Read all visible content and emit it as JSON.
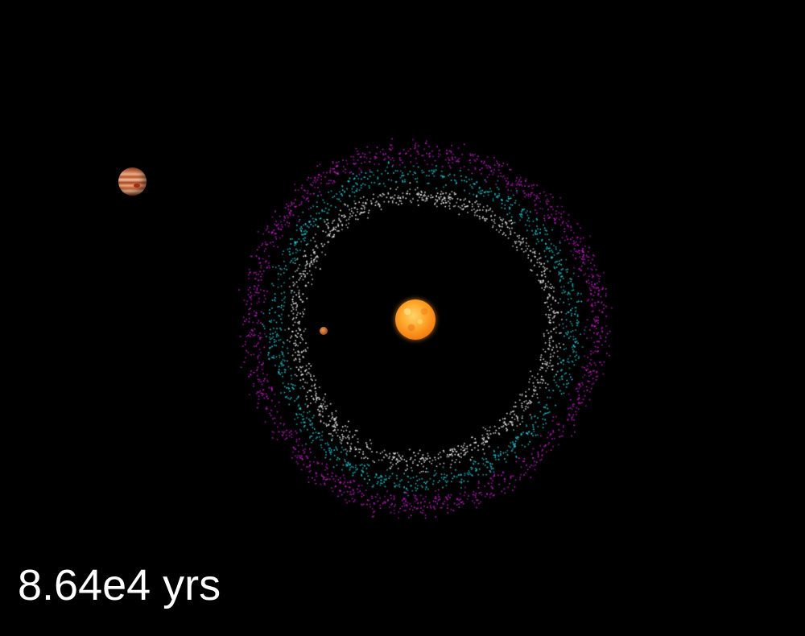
{
  "time_label": "8.64e4 yrs",
  "bodies": [
    {
      "name": "sun",
      "color": "#f28c18"
    },
    {
      "name": "jupiter",
      "color": "#c8714a"
    },
    {
      "name": "small-planet",
      "color": "#b5581e"
    }
  ],
  "particle_colors": {
    "inner": "#ffffff",
    "middle": "#22d8e6",
    "outer": "#d21ad8"
  }
}
